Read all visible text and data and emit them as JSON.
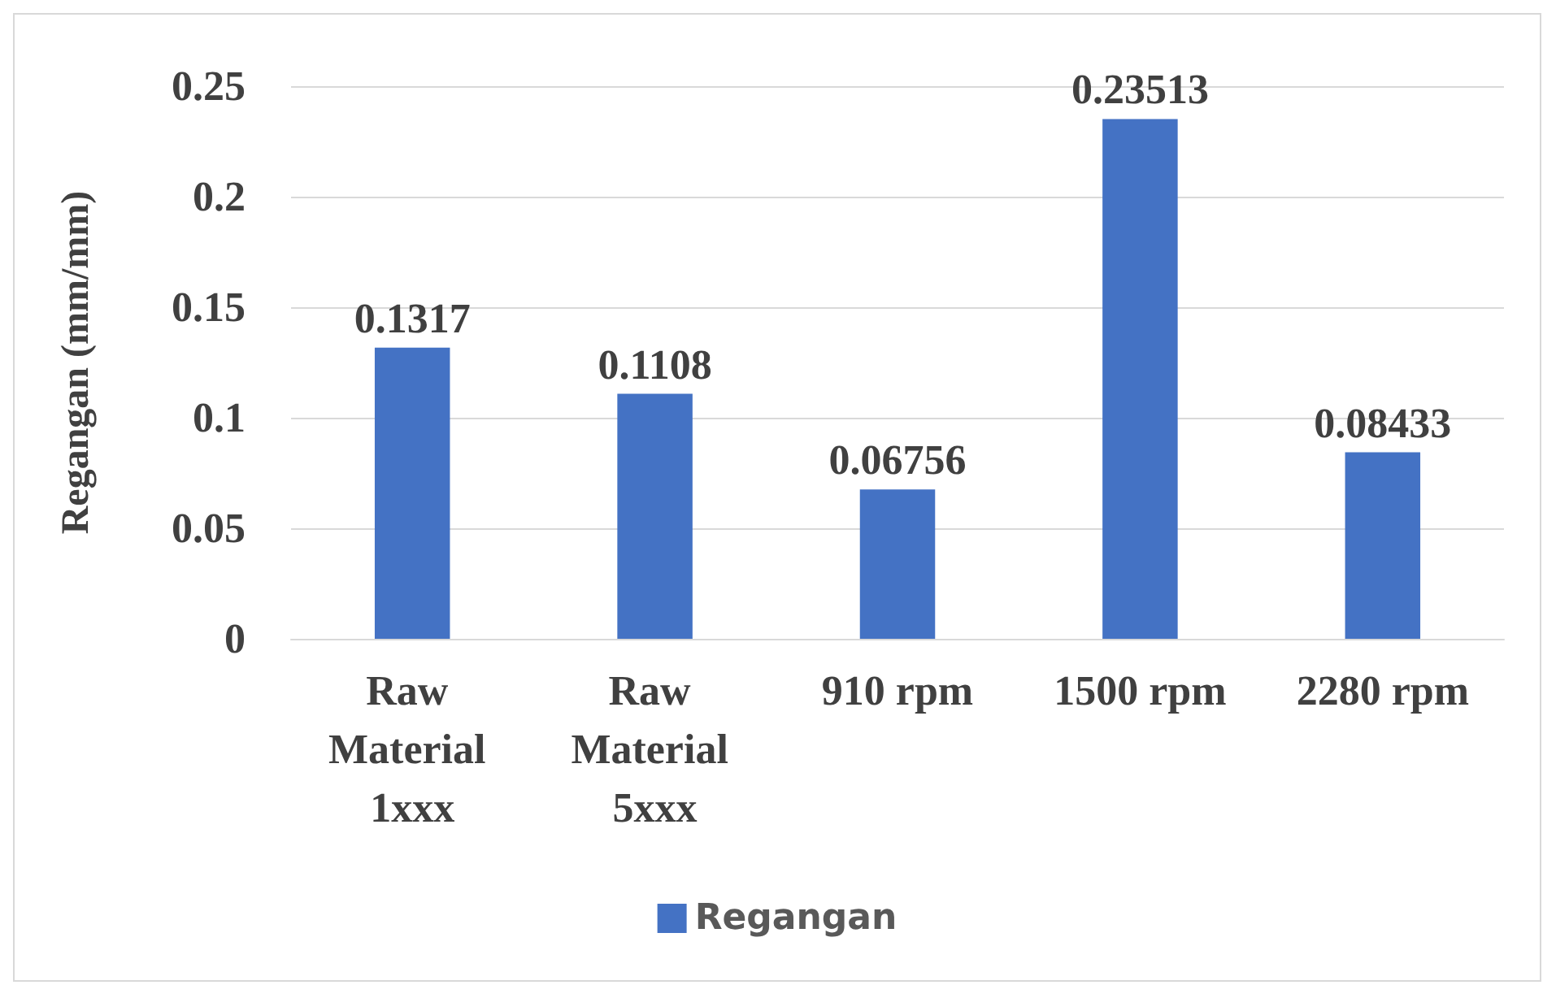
{
  "chart_data": {
    "type": "bar",
    "ylabel": "Regangan (mm/mm)",
    "categories": [
      "Raw Material 1xxx",
      "Raw Material 5xxx",
      "910 rpm",
      "1500 rpm",
      "2280 rpm"
    ],
    "series": [
      {
        "name": "Regangan",
        "color": "#4472c4",
        "values": [
          0.1317,
          0.1108,
          0.06756,
          0.23513,
          0.08433
        ]
      }
    ],
    "ylim": [
      0,
      0.25
    ],
    "yticks": [
      0,
      0.05,
      0.1,
      0.15,
      0.2,
      0.25
    ],
    "grid": "y",
    "legend": "bottom",
    "data_labels": true
  }
}
